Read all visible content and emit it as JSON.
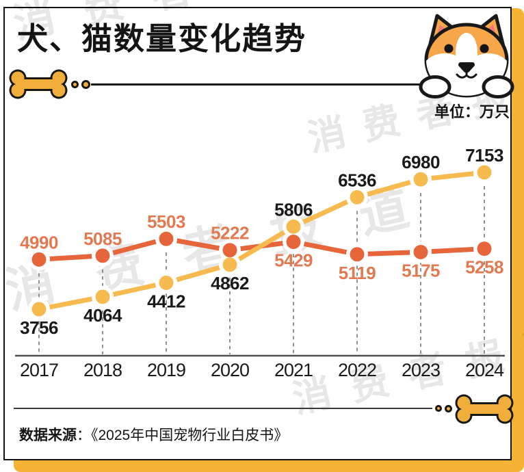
{
  "title": "犬、猫数量变化趋势",
  "unit_label": "单位：万只",
  "watermark_text": "消费者报道",
  "source": {
    "label": "数据来源",
    "rest": "：《2025年中国宠物行业白皮书》"
  },
  "colors": {
    "shadow_yellow": "#F5B335",
    "bone_yellow": "#F2AE3B",
    "orange_line": "#E6653A",
    "orange_label": "#E37950",
    "yellow_line": "#F7BA4E",
    "text_dark": "#1A1A1A",
    "axis": "#4D4D4D",
    "guide": "#909090",
    "dog_fur": "#F8A64A",
    "dog_ear_pink": "#F2797B"
  },
  "chart_data": {
    "type": "line",
    "title": "犬、猫数量变化趋势",
    "unit": "万只",
    "categories": [
      "2017",
      "2018",
      "2019",
      "2020",
      "2021",
      "2022",
      "2023",
      "2024"
    ],
    "series": [
      {
        "name": "orange-series",
        "values": [
          4990,
          5085,
          5503,
          5222,
          5429,
          5119,
          5175,
          5258
        ],
        "color": "#E6653A",
        "label_color": "#E37950",
        "label_side": [
          "above",
          "above",
          "above",
          "above",
          "below",
          "below",
          "below",
          "below"
        ]
      },
      {
        "name": "yellow-series",
        "values": [
          3756,
          4064,
          4412,
          4862,
          5806,
          6536,
          6980,
          7153
        ],
        "color": "#F7BA4E",
        "label_color": "#1A1A1A",
        "label_side": [
          "below",
          "below",
          "below",
          "below",
          "above",
          "above",
          "above",
          "above"
        ]
      }
    ],
    "xlabel": "",
    "ylabel": "",
    "ylim": [
      3500,
      7400
    ],
    "grid": false,
    "legend": false,
    "data_labels": true
  }
}
